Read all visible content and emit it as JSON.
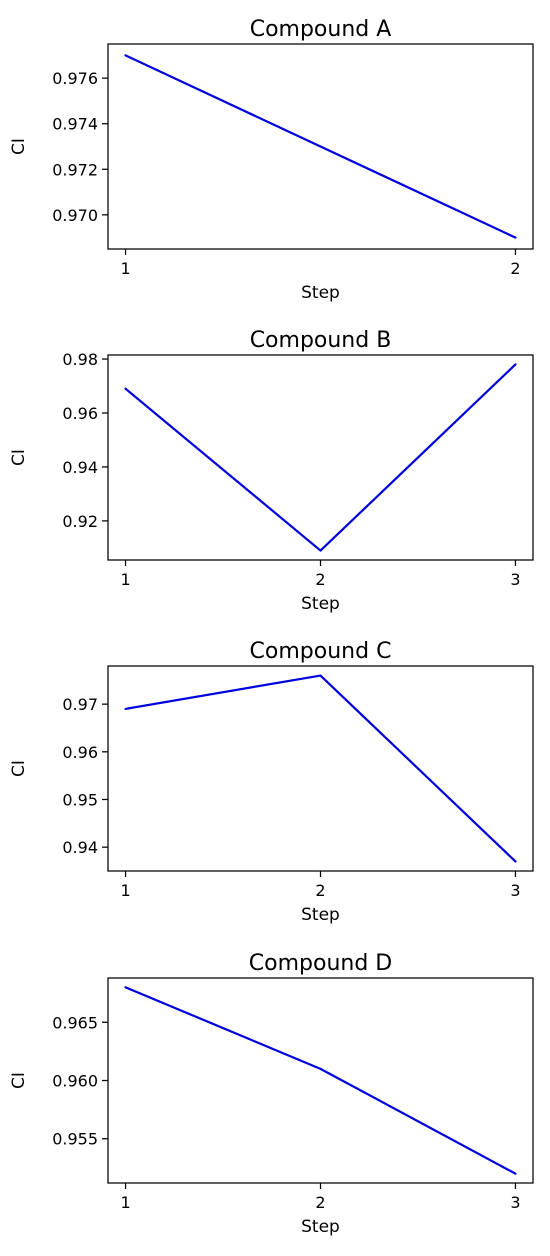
{
  "chart_data": [
    {
      "type": "line",
      "title": "Compound A",
      "xlabel": "Step",
      "ylabel": "CI",
      "x": [
        1,
        2
      ],
      "xticks": [
        "1",
        "2"
      ],
      "series": [
        {
          "values": [
            0.977,
            0.969
          ],
          "color": "#0000dd"
        }
      ],
      "ylim": [
        0.9685,
        0.9775
      ],
      "yticks": [
        0.97,
        0.972,
        0.974,
        0.976
      ],
      "ytick_labels": [
        "0.970",
        "0.972",
        "0.974",
        "0.976"
      ],
      "grid": false
    },
    {
      "type": "line",
      "title": "Compound B",
      "xlabel": "Step",
      "ylabel": "CI",
      "x": [
        1,
        2,
        3
      ],
      "xticks": [
        "1",
        "2",
        "3"
      ],
      "series": [
        {
          "values": [
            0.969,
            0.909,
            0.978
          ],
          "color": "#0000dd"
        }
      ],
      "ylim": [
        0.9055,
        0.9815
      ],
      "yticks": [
        0.92,
        0.94,
        0.96,
        0.98
      ],
      "ytick_labels": [
        "0.92",
        "0.94",
        "0.96",
        "0.98"
      ],
      "grid": false
    },
    {
      "type": "line",
      "title": "Compound C",
      "xlabel": "Step",
      "ylabel": "CI",
      "x": [
        1,
        2,
        3
      ],
      "xticks": [
        "1",
        "2",
        "3"
      ],
      "series": [
        {
          "values": [
            0.969,
            0.976,
            0.937
          ],
          "color": "#0000dd"
        }
      ],
      "ylim": [
        0.935,
        0.978
      ],
      "yticks": [
        0.94,
        0.95,
        0.96,
        0.97
      ],
      "ytick_labels": [
        "0.94",
        "0.95",
        "0.96",
        "0.97"
      ],
      "grid": false
    },
    {
      "type": "line",
      "title": "Compound D",
      "xlabel": "Step",
      "ylabel": "CI",
      "x": [
        1,
        2,
        3
      ],
      "xticks": [
        "1",
        "2",
        "3"
      ],
      "series": [
        {
          "values": [
            0.968,
            0.961,
            0.952
          ],
          "color": "#0000dd"
        }
      ],
      "ylim": [
        0.9512,
        0.9688
      ],
      "yticks": [
        0.955,
        0.96,
        0.965
      ],
      "ytick_labels": [
        "0.955",
        "0.960",
        "0.965"
      ],
      "grid": false
    }
  ]
}
